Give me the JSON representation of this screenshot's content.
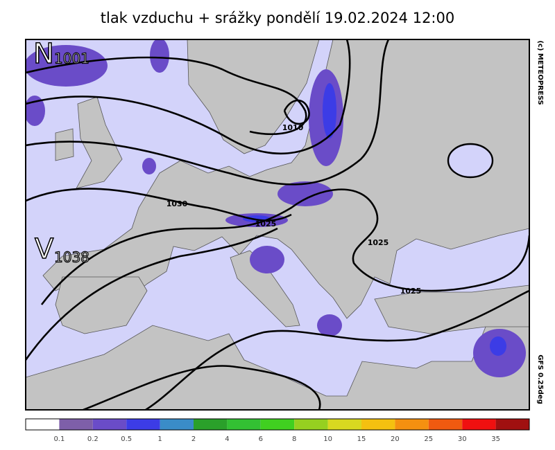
{
  "title": "tlak vzduchu + srážky pondělí 19.02.2024 12:00",
  "pressure_centers": [
    {
      "letter": "N",
      "value": "1001"
    },
    {
      "letter": "V",
      "value": "1038"
    }
  ],
  "isobar_labels": [
    "1030",
    "1025",
    "1010",
    "1025",
    "1025"
  ],
  "credit": "(c) METEOPRESS",
  "model": "GFS 0.25deg",
  "legend": {
    "colors": [
      "#ffffff",
      "#7e5fa9",
      "#6a4cc8",
      "#3c3ce6",
      "#3a8cc8",
      "#2aa02a",
      "#33c033",
      "#40d020",
      "#96d020",
      "#d8d820",
      "#f4c010",
      "#f49010",
      "#f05a10",
      "#f01010",
      "#a01010"
    ],
    "labels": [
      "0.1",
      "0.2",
      "0.5",
      "1",
      "2",
      "4",
      "6",
      "8",
      "10",
      "15",
      "20",
      "25",
      "30",
      "35"
    ]
  }
}
